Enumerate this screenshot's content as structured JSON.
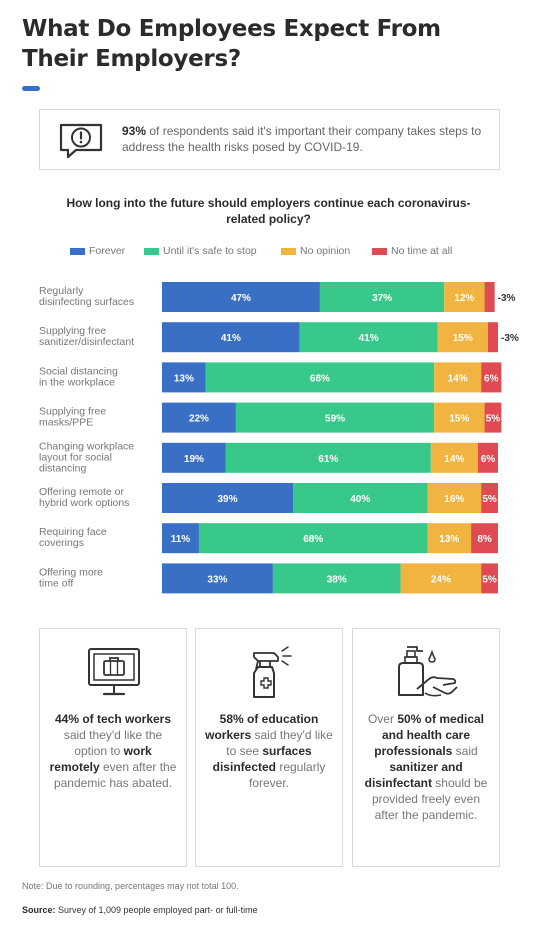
{
  "title": "What Do Employees Expect From Their Employers?",
  "callout": {
    "stat": "93%",
    "text": " of respondents said it's important their company takes steps to address the health risks posed by COVID-19.",
    "icon": "alert-speech-bubble-icon"
  },
  "colors": {
    "forever": "#3a6fc6",
    "until_safe": "#38c98a",
    "no_opinion": "#f2b441",
    "no_time": "#e04a52"
  },
  "chart_data": {
    "type": "bar",
    "orientation": "horizontal",
    "stacked": true,
    "title": "How long into the future should employers continue each coronavirus-related policy?",
    "categories": [
      "Regularly disinfecting surfaces",
      "Supplying free sanitizer/disinfectant",
      "Social distancing in the workplace",
      "Supplying free masks/PPE",
      "Changing workplace layout for social distancing",
      "Offering remote or hybrid work options",
      "Requiring face coverings",
      "Offering more time off"
    ],
    "category_lines": [
      [
        "Regularly",
        "disinfecting surfaces"
      ],
      [
        "Supplying free",
        "sanitizer/disinfectant"
      ],
      [
        "Social distancing",
        "in the workplace"
      ],
      [
        "Supplying free",
        "masks/PPE"
      ],
      [
        "Changing workplace",
        "layout for social",
        "distancing"
      ],
      [
        "Offering remote or",
        "hybrid work options"
      ],
      [
        "Requiring face",
        "coverings"
      ],
      [
        "Offering more",
        "time off"
      ]
    ],
    "series": [
      {
        "name": "Forever",
        "color": "#3a6fc6",
        "values": [
          47,
          41,
          13,
          22,
          19,
          39,
          11,
          33
        ]
      },
      {
        "name": "Until it's safe to stop",
        "color": "#38c98a",
        "values": [
          37,
          41,
          68,
          59,
          61,
          40,
          68,
          38
        ]
      },
      {
        "name": "No opinion",
        "color": "#f2b441",
        "values": [
          12,
          15,
          14,
          15,
          14,
          16,
          13,
          24
        ]
      },
      {
        "name": "No time at all",
        "color": "#e04a52",
        "values": [
          3,
          3,
          6,
          5,
          6,
          5,
          8,
          5
        ]
      }
    ],
    "value_suffix": "%",
    "legend_position": "top",
    "grid": false
  },
  "cards": [
    {
      "icon": "laptop-briefcase-icon",
      "parts": [
        {
          "t": "44% of tech workers",
          "b": true
        },
        {
          "t": " said they'd like the option to ",
          "b": false
        },
        {
          "t": "work remotely",
          "b": true
        },
        {
          "t": " even after the pandemic has abated.",
          "b": false
        }
      ]
    },
    {
      "icon": "spray-bottle-icon",
      "parts": [
        {
          "t": "58% of education workers",
          "b": true
        },
        {
          "t": " said they'd like to see ",
          "b": false
        },
        {
          "t": "surfaces disinfected",
          "b": true
        },
        {
          "t": " regularly forever.",
          "b": false
        }
      ]
    },
    {
      "icon": "hand-sanitizer-icon",
      "parts": [
        {
          "t": "Over ",
          "b": false
        },
        {
          "t": "50% of medical and health care professionals",
          "b": true
        },
        {
          "t": " said ",
          "b": false
        },
        {
          "t": "sanitizer and disinfectant",
          "b": true
        },
        {
          "t": " should be provided freely even after the pandemic.",
          "b": false
        }
      ]
    }
  ],
  "note": "Note: Due to rounding, percentages may not total 100.",
  "source": {
    "label": "Source:",
    "text": " Survey of 1,009 people employed part- or full-time"
  }
}
